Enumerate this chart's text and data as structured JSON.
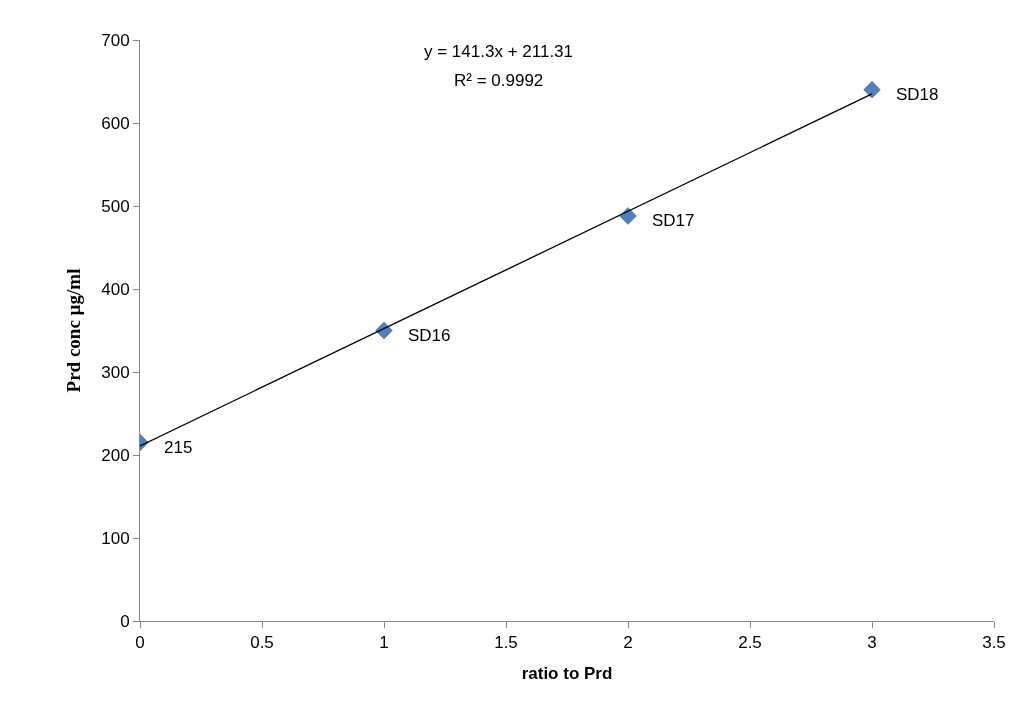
{
  "chart_data": {
    "type": "scatter",
    "xlabel": "ratio to Prd",
    "ylabel": "Prd conc µg/ml",
    "series": [
      {
        "color": "#4f81bd",
        "x": [
          0,
          1,
          2,
          3
        ],
        "values": [
          215,
          350,
          488,
          640
        ]
      },
      {
        "type": "line",
        "marker": "none",
        "color": "#000000",
        "x": [
          0,
          3
        ],
        "values": [
          211,
          635
        ]
      }
    ],
    "annotations": [
      "y = 141.3x + 211.31",
      "R² = 0.9992",
      {
        "text": "215",
        "x": 0,
        "y": 215
      },
      {
        "text": "SD16",
        "x": 1,
        "y": 350
      },
      {
        "text": "SD17",
        "x": 2,
        "y": 488
      },
      {
        "text": "SD18",
        "x": 3,
        "y": 640
      }
    ],
    "xlim": [
      0,
      3.5
    ],
    "xticks": [
      0,
      0.5,
      1,
      1.5,
      2,
      2.5,
      3,
      3.5
    ],
    "ylim": [
      0,
      700
    ],
    "yticks": [
      0,
      100,
      200,
      300,
      400,
      500,
      600,
      700
    ],
    "marker": "diamond",
    "line_style": "solid"
  }
}
